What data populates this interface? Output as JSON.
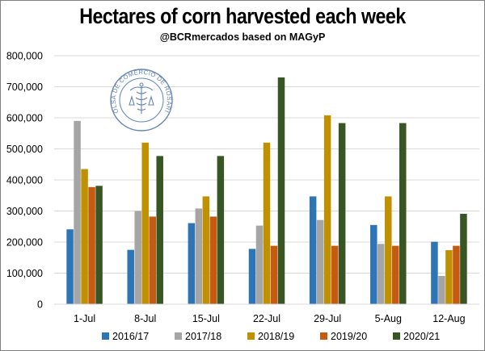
{
  "chart_data": {
    "type": "bar",
    "title": "Hectares of corn harvested each week",
    "subtitle": "@BCRmercados based on MAGyP",
    "categories": [
      "1-Jul",
      "8-Jul",
      "15-Jul",
      "22-Jul",
      "29-Jul",
      "5-Aug",
      "12-Aug"
    ],
    "series": [
      {
        "name": "2016/17",
        "color": "#2e75b6",
        "values": [
          241000,
          175000,
          261000,
          178000,
          347000,
          255000,
          201000
        ]
      },
      {
        "name": "2017/18",
        "color": "#a5a5a5",
        "values": [
          590000,
          300000,
          308000,
          253000,
          271000,
          194000,
          91000
        ]
      },
      {
        "name": "2018/19",
        "color": "#bf9000",
        "values": [
          435000,
          520000,
          347000,
          520000,
          608000,
          347000,
          174000
        ]
      },
      {
        "name": "2019/20",
        "color": "#c55a11",
        "values": [
          377000,
          282000,
          282000,
          188000,
          188000,
          188000,
          188000
        ]
      },
      {
        "name": "2020/21",
        "color": "#375623",
        "values": [
          381000,
          477000,
          477000,
          730000,
          583000,
          583000,
          291000
        ]
      }
    ],
    "yticks": [
      0,
      100000,
      200000,
      300000,
      400000,
      500000,
      600000,
      700000,
      800000
    ],
    "ytick_labels": [
      "0",
      "100,000",
      "200,000",
      "300,000",
      "400,000",
      "500,000",
      "600,000",
      "700,000",
      "800,000"
    ],
    "ylim": [
      0,
      800000
    ],
    "xlabel": "",
    "ylabel": "",
    "grid": true,
    "legend_position": "bottom"
  },
  "seal": {
    "text": "BOLSA DE COMERCIO DE ROSARIO",
    "color": "#4a6fa5"
  }
}
